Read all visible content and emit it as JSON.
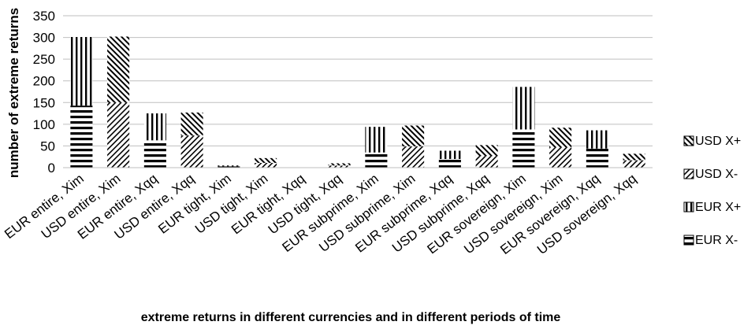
{
  "chart_data": {
    "type": "bar",
    "stacked": true,
    "stacking": "grouped-by-currency",
    "title": "",
    "xlabel": "extreme returns in different currencies and in different periods of time",
    "ylabel": "number of extreme returns",
    "ylim": [
      0,
      350
    ],
    "yticks": [
      0,
      50,
      100,
      150,
      200,
      250,
      300,
      350
    ],
    "grid": true,
    "legend_position": "right",
    "categories": [
      "EUR entire, Xim",
      "USD entire, Xim",
      "EUR entire, Xqq",
      "USD entire, Xqq",
      "EUR tight, Xim",
      "USD tight, Xim",
      "EUR tight, Xqq",
      "USD tight, Xqq",
      "EUR subprime, Xim",
      "USD subprime, Xim",
      "EUR subprime, Xqq",
      "USD subprime, Xqq",
      "EUR sovereign, Xim",
      "USD sovereign, Xim",
      "EUR sovereign, Xqq",
      "USD sovereign, Xqq"
    ],
    "series": [
      {
        "name": "EUR X-",
        "currency": "EUR",
        "pattern": "horizontal",
        "values": [
          143,
          0,
          63,
          0,
          3,
          0,
          0,
          0,
          35,
          0,
          20,
          0,
          88,
          0,
          44,
          0
        ]
      },
      {
        "name": "EUR X+",
        "currency": "EUR",
        "pattern": "vertical",
        "values": [
          158,
          0,
          62,
          0,
          2,
          0,
          0,
          0,
          59,
          0,
          19,
          0,
          98,
          0,
          42,
          0
        ]
      },
      {
        "name": "USD X-",
        "currency": "USD",
        "pattern": "diag-up",
        "values": [
          0,
          150,
          0,
          74,
          0,
          11,
          0,
          5,
          0,
          49,
          0,
          27,
          0,
          47,
          0,
          17
        ]
      },
      {
        "name": "USD X+",
        "currency": "USD",
        "pattern": "diag-down",
        "values": [
          0,
          152,
          0,
          53,
          0,
          11,
          0,
          5,
          0,
          48,
          0,
          25,
          0,
          45,
          0,
          15
        ]
      }
    ],
    "legend_order": [
      "USD X+",
      "USD X-",
      "EUR X+",
      "EUR X-"
    ]
  }
}
